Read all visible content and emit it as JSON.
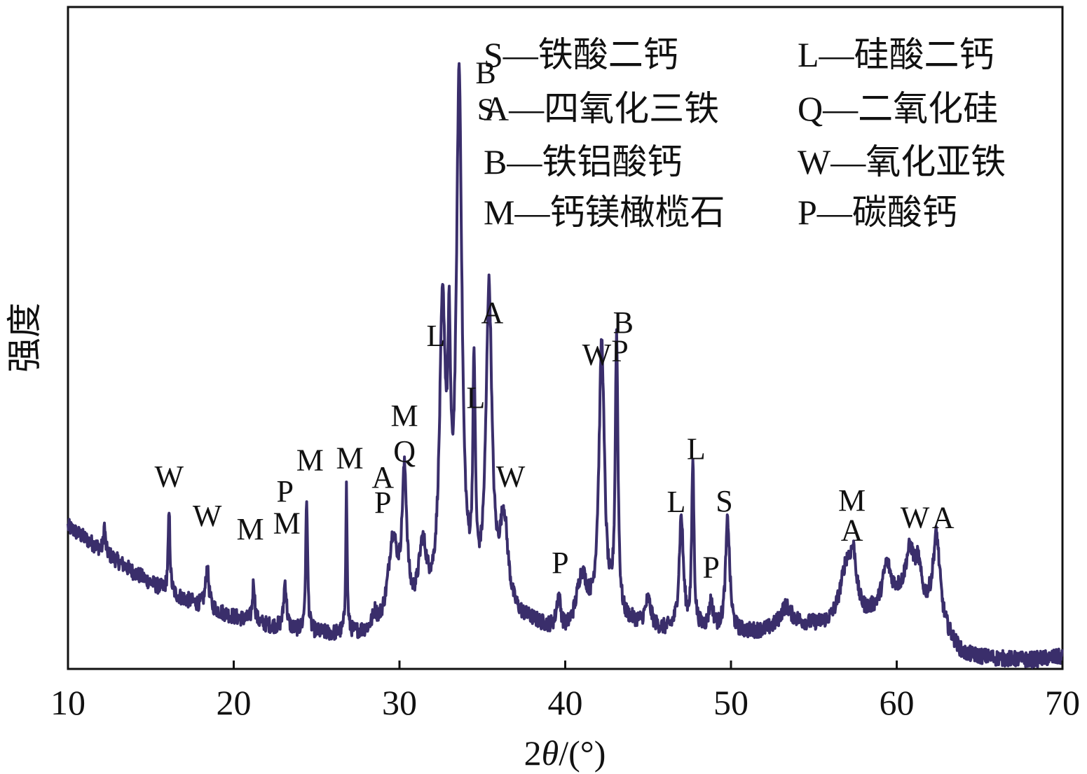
{
  "chart_data": {
    "type": "line",
    "title": "",
    "xlabel_prefix": "2",
    "xlabel_symbol": "θ",
    "xlabel_suffix": "/(°)",
    "ylabel": "强度",
    "xlim": [
      10,
      70
    ],
    "ylim": [
      0,
      100
    ],
    "x_ticks": [
      10,
      20,
      30,
      40,
      50,
      60,
      70
    ],
    "x_tick_labels": [
      "10",
      "20",
      "30",
      "40",
      "50",
      "60",
      "70"
    ],
    "y_ticks_shown": false,
    "grid": false,
    "line_color": "#3a2e6b",
    "background": {
      "x": [
        10,
        12,
        14,
        16,
        18,
        20,
        22,
        24,
        26,
        28,
        30,
        32,
        34,
        36,
        38,
        40,
        42,
        44,
        46,
        48,
        50,
        52,
        54,
        56,
        58,
        60,
        62,
        64,
        66,
        68,
        70
      ],
      "y": [
        21.5,
        18.0,
        14.5,
        11.5,
        9.5,
        7.8,
        6.5,
        5.5,
        5.0,
        5.0,
        5.5,
        7.0,
        8.0,
        7.0,
        6.5,
        4.5,
        6.0,
        6.5,
        5.5,
        5.8,
        5.2,
        5.5,
        6.5,
        6.0,
        7.0,
        10.0,
        8.0,
        2.0,
        1.5,
        1.3,
        1.8
      ]
    },
    "peaks": [
      {
        "x": 12.2,
        "h": 4,
        "w": 0.06
      },
      {
        "x": 16.1,
        "h": 12,
        "w": 0.07
      },
      {
        "x": 18.4,
        "h": 6,
        "w": 0.12
      },
      {
        "x": 21.2,
        "h": 6,
        "w": 0.08
      },
      {
        "x": 23.1,
        "h": 7,
        "w": 0.1
      },
      {
        "x": 24.4,
        "h": 20,
        "w": 0.07
      },
      {
        "x": 26.8,
        "h": 22,
        "w": 0.05
      },
      {
        "x": 28.5,
        "h": 2,
        "w": 0.15
      },
      {
        "x": 29.6,
        "h": 13,
        "w": 0.35
      },
      {
        "x": 30.3,
        "h": 21,
        "w": 0.18
      },
      {
        "x": 31.4,
        "h": 10,
        "w": 0.3
      },
      {
        "x": 32.6,
        "h": 44,
        "w": 0.22
      },
      {
        "x": 33.0,
        "h": 30,
        "w": 0.1
      },
      {
        "x": 33.6,
        "h": 79,
        "w": 0.2
      },
      {
        "x": 34.5,
        "h": 33,
        "w": 0.09
      },
      {
        "x": 35.4,
        "h": 48,
        "w": 0.22
      },
      {
        "x": 36.3,
        "h": 14,
        "w": 0.3
      },
      {
        "x": 39.6,
        "h": 5,
        "w": 0.15
      },
      {
        "x": 41.0,
        "h": 8,
        "w": 0.4
      },
      {
        "x": 42.2,
        "h": 42,
        "w": 0.2
      },
      {
        "x": 43.1,
        "h": 42,
        "w": 0.1
      },
      {
        "x": 45.0,
        "h": 4,
        "w": 0.2
      },
      {
        "x": 47.0,
        "h": 17,
        "w": 0.15
      },
      {
        "x": 47.7,
        "h": 25,
        "w": 0.08
      },
      {
        "x": 48.8,
        "h": 4,
        "w": 0.15
      },
      {
        "x": 49.8,
        "h": 17,
        "w": 0.15
      },
      {
        "x": 53.3,
        "h": 3,
        "w": 0.4
      },
      {
        "x": 57.0,
        "h": 9,
        "w": 0.5
      },
      {
        "x": 57.4,
        "h": 6,
        "w": 0.2
      },
      {
        "x": 59.4,
        "h": 6,
        "w": 0.3
      },
      {
        "x": 60.8,
        "h": 8,
        "w": 0.35
      },
      {
        "x": 61.3,
        "h": 5,
        "w": 0.2
      },
      {
        "x": 62.4,
        "h": 13,
        "w": 0.25
      }
    ],
    "peak_labels": [
      {
        "text": "W",
        "x": 16.1,
        "y": 27.5
      },
      {
        "text": "W",
        "x": 18.4,
        "y": 21.6
      },
      {
        "text": "M",
        "x": 21.0,
        "y": 19.6
      },
      {
        "text": "M",
        "x": 23.2,
        "y": 20.5
      },
      {
        "text": "P",
        "x": 23.1,
        "y": 25.3
      },
      {
        "text": "M",
        "x": 24.6,
        "y": 30.0
      },
      {
        "text": "M",
        "x": 27.0,
        "y": 30.3
      },
      {
        "text": "A",
        "x": 29.0,
        "y": 27.4
      },
      {
        "text": "P",
        "x": 29.0,
        "y": 23.6
      },
      {
        "text": "Q",
        "x": 30.3,
        "y": 31.3
      },
      {
        "text": "M",
        "x": 30.3,
        "y": 36.7
      },
      {
        "text": "L",
        "x": 32.2,
        "y": 48.8
      },
      {
        "text": "L",
        "x": 34.6,
        "y": 39.4
      },
      {
        "text": "A",
        "x": 35.6,
        "y": 52.3
      },
      {
        "text": "W",
        "x": 36.7,
        "y": 27.5
      },
      {
        "text": "P",
        "x": 39.7,
        "y": 14.5
      },
      {
        "text": "W",
        "x": 41.9,
        "y": 45.9
      },
      {
        "text": "P",
        "x": 43.3,
        "y": 46.5
      },
      {
        "text": "B",
        "x": 43.5,
        "y": 50.8
      },
      {
        "text": "L",
        "x": 47.9,
        "y": 31.7
      },
      {
        "text": "L",
        "x": 46.7,
        "y": 23.7
      },
      {
        "text": "P",
        "x": 48.8,
        "y": 13.8
      },
      {
        "text": "S",
        "x": 49.6,
        "y": 23.8
      },
      {
        "text": "M",
        "x": 57.3,
        "y": 23.9
      },
      {
        "text": "A",
        "x": 57.3,
        "y": 19.4
      },
      {
        "text": "W",
        "x": 61.1,
        "y": 21.3
      },
      {
        "text": "A",
        "x": 62.8,
        "y": 21.3
      },
      {
        "text": "S",
        "x": 35.2,
        "y": 83.0,
        "pos": "S-top"
      },
      {
        "text": "B",
        "x": 35.2,
        "y": 88.5,
        "pos": "B-top"
      }
    ],
    "legend": {
      "position": "top-right",
      "rows": [
        [
          "S—铁酸二钙",
          "L—硅酸二钙"
        ],
        [
          "A—四氧化三铁",
          "Q—二氧化硅"
        ],
        [
          "B—铁铝酸钙",
          "W—氧化亚铁"
        ],
        [
          "M—钙镁橄榄石",
          " P—碳酸钙"
        ]
      ]
    }
  }
}
